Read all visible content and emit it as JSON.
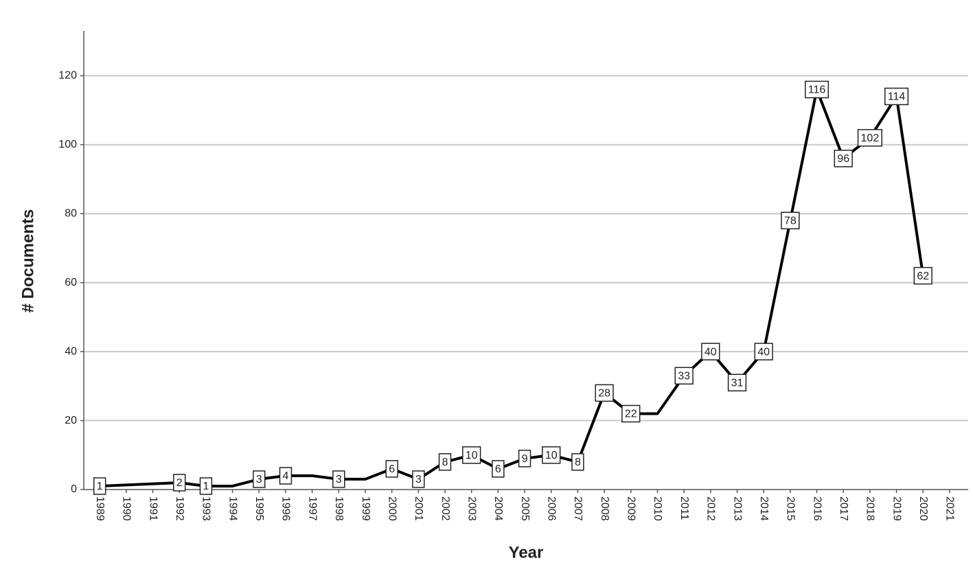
{
  "chart_data": {
    "type": "line",
    "x_label": "Year",
    "y_label": "# Documents",
    "x": [
      1989,
      1992,
      1993,
      1994,
      1995,
      1996,
      1997,
      1998,
      1999,
      2000,
      2001,
      2002,
      2003,
      2004,
      2005,
      2006,
      2007,
      2008,
      2009,
      2010,
      2011,
      2012,
      2013,
      2014,
      2015,
      2016,
      2017,
      2018,
      2019,
      2020
    ],
    "series": [
      {
        "color": "#000000",
        "values": [
          1,
          2,
          1,
          1,
          3,
          4,
          4,
          3,
          3,
          6,
          3,
          8,
          10,
          6,
          9,
          10,
          8,
          28,
          22,
          22,
          33,
          40,
          31,
          40,
          78,
          116,
          96,
          102,
          114,
          62
        ],
        "value_labels": [
          "1",
          "2",
          "1",
          null,
          "3",
          "4",
          null,
          "3",
          null,
          "6",
          "3",
          "8",
          "10",
          "6",
          "9",
          "10",
          "8",
          "28",
          "22",
          null,
          "33",
          "40",
          "31",
          "40",
          "78",
          "116",
          "96",
          "102",
          "114",
          "62"
        ]
      }
    ],
    "xlim": [
      1988.4,
      2021.7
    ],
    "xticks": [
      1989,
      1990,
      1991,
      1992,
      1993,
      1994,
      1995,
      1996,
      1997,
      1998,
      1999,
      2000,
      2001,
      2002,
      2003,
      2004,
      2005,
      2006,
      2007,
      2008,
      2009,
      2010,
      2011,
      2012,
      2013,
      2014,
      2015,
      2016,
      2017,
      2018,
      2019,
      2020,
      2021
    ],
    "ylim": [
      0,
      133
    ],
    "yticks": [
      0,
      20,
      40,
      60,
      80,
      100,
      120
    ],
    "grid": true
  }
}
